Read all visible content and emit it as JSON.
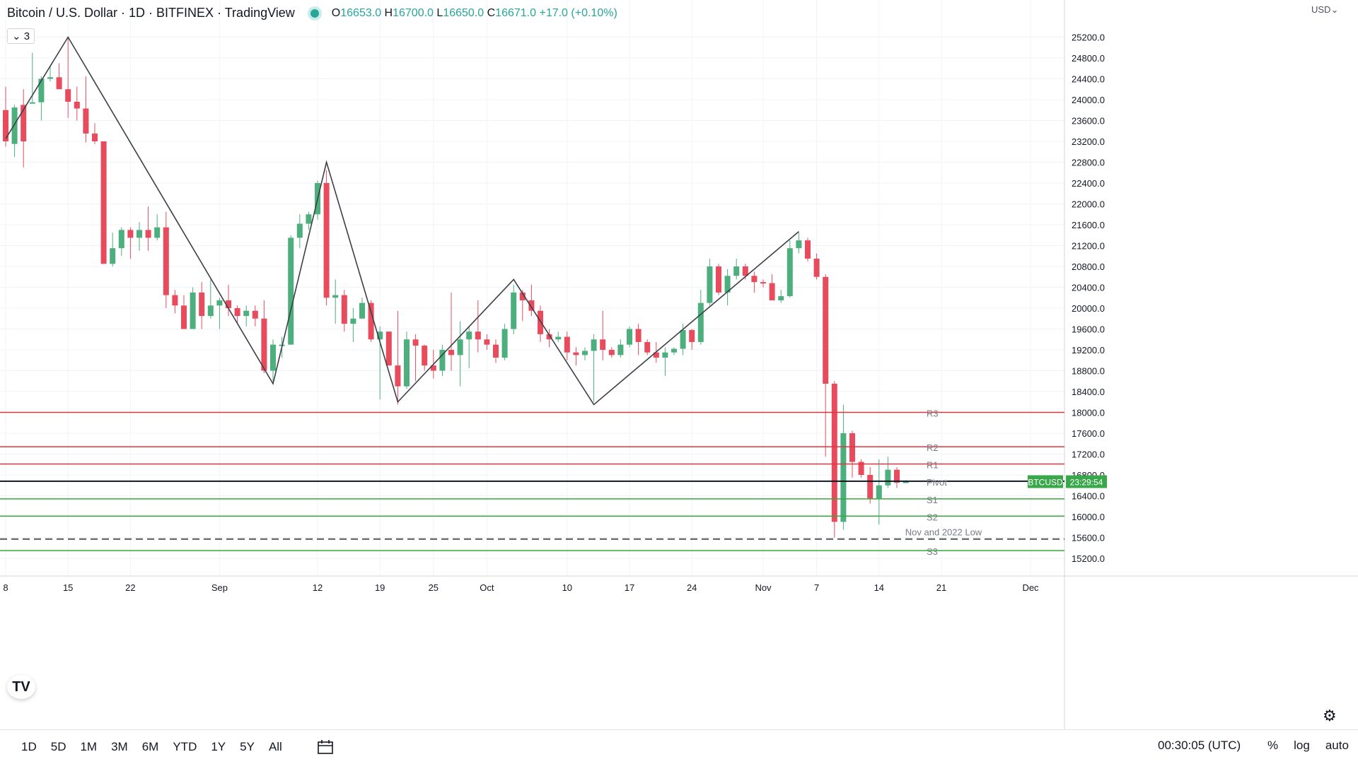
{
  "header": {
    "title": "Bitcoin / U.S. Dollar · 1D · BITFINEX · TradingView",
    "o_label": "O",
    "o_value": "16653.0",
    "h_label": "H",
    "h_value": "16700.0",
    "l_label": "L",
    "l_value": "16650.0",
    "c_label": "C",
    "c_value": "16671.0",
    "change": "+17.0 (+0.10%)",
    "indicator_count": "3",
    "currency": "USD"
  },
  "bottom_bar": {
    "timeframes": [
      "1D",
      "5D",
      "1M",
      "3M",
      "6M",
      "YTD",
      "1Y",
      "5Y",
      "All"
    ],
    "clock": "00:30:05 (UTC)",
    "percent_label": "%",
    "log_label": "log",
    "auto_label": "auto"
  },
  "colors": {
    "up": "#4caf7d",
    "down": "#e84b5c",
    "resistance": "#e0343f",
    "support": "#38a83a",
    "pivot": "#131722",
    "price_tag": "#38a84a"
  },
  "icons": [
    "calendar-icon",
    "gear-icon",
    "tradingview-logo-icon",
    "chevron-down-icon",
    "eye-icon"
  ],
  "chart_data": {
    "type": "candlestick",
    "ylim": [
      14800,
      25600
    ],
    "y_ticks": [
      15200,
      15600,
      16000,
      16400,
      16800,
      17200,
      17600,
      18000,
      18400,
      18800,
      19200,
      19600,
      20000,
      20400,
      20800,
      21200,
      21600,
      22000,
      22400,
      22800,
      23200,
      23600,
      24000,
      24400,
      24800,
      25200
    ],
    "y_tick_labels": [
      "15200.0",
      "15600.0",
      "16000.0",
      "16400.0",
      "16800.0",
      "17200.0",
      "17600.0",
      "18000.0",
      "18400.0",
      "18800.0",
      "19200.0",
      "19600.0",
      "20000.0",
      "20400.0",
      "20800.0",
      "21200.0",
      "21600.0",
      "22000.0",
      "22400.0",
      "22800.0",
      "23200.0",
      "23600.0",
      "24000.0",
      "24400.0",
      "24800.0",
      "25200.0"
    ],
    "x_ticks": [
      {
        "label": "8",
        "date": "2022-08-08"
      },
      {
        "label": "15",
        "date": "2022-08-15"
      },
      {
        "label": "22",
        "date": "2022-08-22"
      },
      {
        "label": "Sep",
        "date": "2022-09-01"
      },
      {
        "label": "12",
        "date": "2022-09-12"
      },
      {
        "label": "19",
        "date": "2022-09-19"
      },
      {
        "label": "25",
        "date": "2022-09-25"
      },
      {
        "label": "Oct",
        "date": "2022-10-01"
      },
      {
        "label": "10",
        "date": "2022-10-10"
      },
      {
        "label": "17",
        "date": "2022-10-17"
      },
      {
        "label": "24",
        "date": "2022-10-24"
      },
      {
        "label": "Nov",
        "date": "2022-11-01"
      },
      {
        "label": "7",
        "date": "2022-11-07"
      },
      {
        "label": "14",
        "date": "2022-11-14"
      },
      {
        "label": "21",
        "date": "2022-11-21"
      },
      {
        "label": "Dec",
        "date": "2022-12-01"
      }
    ],
    "x_range": [
      "2022-08-08",
      "2022-12-03"
    ],
    "candles": [
      [
        "2022-08-08",
        23800,
        24250,
        23100,
        23200
      ],
      [
        "2022-08-09",
        23150,
        23900,
        22900,
        23850
      ],
      [
        "2022-08-10",
        23900,
        24200,
        22700,
        23200
      ],
      [
        "2022-08-11",
        23950,
        24900,
        23950,
        23950
      ],
      [
        "2022-08-12",
        23950,
        24450,
        23600,
        24400
      ],
      [
        "2022-08-13",
        24400,
        24650,
        24350,
        24430
      ],
      [
        "2022-08-14",
        24430,
        24700,
        24300,
        24200
      ],
      [
        "2022-08-15",
        24200,
        25200,
        23650,
        23960
      ],
      [
        "2022-08-16",
        23960,
        24250,
        23600,
        23830
      ],
      [
        "2022-08-17",
        23830,
        24450,
        23180,
        23350
      ],
      [
        "2022-08-18",
        23350,
        23550,
        23150,
        23200
      ],
      [
        "2022-08-19",
        23200,
        23200,
        20850,
        20850
      ],
      [
        "2022-08-20",
        20850,
        21450,
        20800,
        21150
      ],
      [
        "2022-08-21",
        21150,
        21550,
        21000,
        21500
      ],
      [
        "2022-08-22",
        21500,
        21550,
        20950,
        21350
      ],
      [
        "2022-08-23",
        21350,
        21650,
        21100,
        21500
      ],
      [
        "2022-08-24",
        21500,
        21950,
        21100,
        21350
      ],
      [
        "2022-08-25",
        21350,
        21800,
        21300,
        21550
      ],
      [
        "2022-08-26",
        21550,
        21850,
        20000,
        20250
      ],
      [
        "2022-08-27",
        20250,
        20350,
        19900,
        20050
      ],
      [
        "2022-08-28",
        20050,
        20250,
        19600,
        19600
      ],
      [
        "2022-08-29",
        19600,
        20400,
        19600,
        20300
      ],
      [
        "2022-08-30",
        20300,
        20500,
        19600,
        19850
      ],
      [
        "2022-08-31",
        19850,
        20550,
        19800,
        20050
      ],
      [
        "2022-09-01",
        20050,
        20200,
        19600,
        20150
      ],
      [
        "2022-09-02",
        20150,
        20450,
        19850,
        20000
      ],
      [
        "2022-09-03",
        20000,
        20050,
        19700,
        19850
      ],
      [
        "2022-09-04",
        19850,
        20050,
        19650,
        19950
      ],
      [
        "2022-09-05",
        19950,
        20050,
        19650,
        19800
      ],
      [
        "2022-09-06",
        19800,
        20150,
        18750,
        18800
      ],
      [
        "2022-09-07",
        18800,
        19400,
        18600,
        19300
      ],
      [
        "2022-09-08",
        19300,
        19450,
        19050,
        19300
      ],
      [
        "2022-09-09",
        19300,
        21400,
        19300,
        21350
      ],
      [
        "2022-09-10",
        21350,
        21800,
        21150,
        21620
      ],
      [
        "2022-09-11",
        21620,
        21850,
        21500,
        21800
      ],
      [
        "2022-09-12",
        21800,
        22450,
        21700,
        22400
      ],
      [
        "2022-09-13",
        22400,
        22650,
        20050,
        20200
      ],
      [
        "2022-09-14",
        20200,
        20550,
        19700,
        20250
      ],
      [
        "2022-09-15",
        20250,
        20350,
        19550,
        19700
      ],
      [
        "2022-09-16",
        19700,
        20000,
        19350,
        19800
      ],
      [
        "2022-09-17",
        19800,
        20200,
        19800,
        20100
      ],
      [
        "2022-09-18",
        20100,
        20150,
        19350,
        19400
      ],
      [
        "2022-09-19",
        19400,
        19650,
        18250,
        19550
      ],
      [
        "2022-09-20",
        19550,
        19550,
        18900,
        18900
      ],
      [
        "2022-09-21",
        18900,
        19950,
        18150,
        18500
      ],
      [
        "2022-09-22",
        18500,
        19550,
        18450,
        19400
      ],
      [
        "2022-09-23",
        19400,
        19500,
        18600,
        19280
      ],
      [
        "2022-09-24",
        19280,
        19300,
        18800,
        18900
      ],
      [
        "2022-09-25",
        18900,
        19200,
        18650,
        18800
      ],
      [
        "2022-09-26",
        18800,
        19300,
        18700,
        19200
      ],
      [
        "2022-09-27",
        19200,
        20300,
        18800,
        19100
      ],
      [
        "2022-09-28",
        19100,
        19750,
        18500,
        19400
      ],
      [
        "2022-09-29",
        19400,
        19650,
        18850,
        19550
      ],
      [
        "2022-09-30",
        19550,
        20150,
        19150,
        19400
      ],
      [
        "2022-10-01",
        19400,
        19500,
        19200,
        19300
      ],
      [
        "2022-10-02",
        19300,
        19400,
        18950,
        19050
      ],
      [
        "2022-10-03",
        19050,
        19700,
        19000,
        19600
      ],
      [
        "2022-10-04",
        19600,
        20450,
        19500,
        20300
      ],
      [
        "2022-10-05",
        20300,
        20350,
        19750,
        20150
      ],
      [
        "2022-10-06",
        20150,
        20450,
        19850,
        19950
      ],
      [
        "2022-10-07",
        19950,
        20050,
        19350,
        19500
      ],
      [
        "2022-10-08",
        19500,
        19600,
        19250,
        19400
      ],
      [
        "2022-10-09",
        19400,
        19550,
        19350,
        19450
      ],
      [
        "2022-10-10",
        19450,
        19550,
        19000,
        19150
      ],
      [
        "2022-10-11",
        19150,
        19250,
        18900,
        19100
      ],
      [
        "2022-10-12",
        19100,
        19250,
        19000,
        19180
      ],
      [
        "2022-10-13",
        19180,
        19500,
        18200,
        19400
      ],
      [
        "2022-10-14",
        19400,
        19950,
        19000,
        19200
      ],
      [
        "2022-10-15",
        19200,
        19250,
        19050,
        19100
      ],
      [
        "2022-10-16",
        19100,
        19400,
        19050,
        19300
      ],
      [
        "2022-10-17",
        19300,
        19650,
        19250,
        19600
      ],
      [
        "2022-10-18",
        19600,
        19700,
        19100,
        19350
      ],
      [
        "2022-10-19",
        19350,
        19400,
        19100,
        19150
      ],
      [
        "2022-10-20",
        19150,
        19350,
        18950,
        19050
      ],
      [
        "2022-10-21",
        19050,
        19250,
        18700,
        19150
      ],
      [
        "2022-10-22",
        19150,
        19250,
        19100,
        19220
      ],
      [
        "2022-10-23",
        19220,
        19700,
        19100,
        19580
      ],
      [
        "2022-10-24",
        19580,
        19600,
        19200,
        19350
      ],
      [
        "2022-10-25",
        19350,
        20350,
        19300,
        20100
      ],
      [
        "2022-10-26",
        20100,
        20950,
        20050,
        20800
      ],
      [
        "2022-10-27",
        20800,
        20850,
        20250,
        20300
      ],
      [
        "2022-10-28",
        20300,
        20750,
        20050,
        20620
      ],
      [
        "2022-10-29",
        20620,
        20950,
        20550,
        20800
      ],
      [
        "2022-10-30",
        20800,
        20850,
        20550,
        20620
      ],
      [
        "2022-10-31",
        20620,
        20700,
        20300,
        20500
      ],
      [
        "2022-11-01",
        20500,
        20550,
        20400,
        20480
      ],
      [
        "2022-11-02",
        20480,
        20650,
        20150,
        20150
      ],
      [
        "2022-11-03",
        20150,
        20350,
        20100,
        20230
      ],
      [
        "2022-11-04",
        20230,
        21300,
        20200,
        21150
      ],
      [
        "2022-11-05",
        21150,
        21450,
        21050,
        21300
      ],
      [
        "2022-11-06",
        21300,
        21350,
        20900,
        20950
      ],
      [
        "2022-11-07",
        20950,
        21050,
        20550,
        20600
      ],
      [
        "2022-11-08",
        20600,
        20650,
        17150,
        18550
      ],
      [
        "2022-11-09",
        18550,
        18600,
        15600,
        15900
      ],
      [
        "2022-11-10",
        15900,
        18150,
        15750,
        17600
      ],
      [
        "2022-11-11",
        17600,
        17650,
        16750,
        17050
      ],
      [
        "2022-11-12",
        17050,
        17100,
        16750,
        16800
      ],
      [
        "2022-11-13",
        16800,
        16950,
        16250,
        16350
      ],
      [
        "2022-11-14",
        16350,
        17100,
        15850,
        16600
      ],
      [
        "2022-11-15",
        16600,
        17150,
        16550,
        16900
      ],
      [
        "2022-11-16",
        16900,
        16950,
        16550,
        16650
      ],
      [
        "2022-11-17",
        16653,
        16700,
        16650,
        16671
      ]
    ],
    "zigzag": [
      [
        "2022-08-08",
        23250
      ],
      [
        "2022-08-15",
        25200
      ],
      [
        "2022-09-07",
        18550
      ],
      [
        "2022-09-13",
        22800
      ],
      [
        "2022-09-21",
        18200
      ],
      [
        "2022-10-04",
        20550
      ],
      [
        "2022-10-13",
        18150
      ],
      [
        "2022-11-05",
        21470
      ]
    ],
    "levels": [
      {
        "name": "R3",
        "value": 18000,
        "kind": "resistance",
        "style": "solid"
      },
      {
        "name": "R2",
        "value": 17340,
        "kind": "resistance",
        "style": "solid"
      },
      {
        "name": "R1",
        "value": 17010,
        "kind": "resistance",
        "style": "solid"
      },
      {
        "name": "Pivot",
        "value": 16680,
        "kind": "pivot",
        "style": "solid"
      },
      {
        "name": "S1",
        "value": 16340,
        "kind": "support",
        "style": "solid"
      },
      {
        "name": "S2",
        "value": 16010,
        "kind": "support",
        "style": "solid"
      },
      {
        "name": "Nov and 2022 Low",
        "value": 15570,
        "kind": "low",
        "style": "dashed"
      },
      {
        "name": "S3",
        "value": 15350,
        "kind": "support",
        "style": "solid"
      }
    ],
    "price_tag": {
      "symbol": "BTCUSD",
      "countdown": "23:29:54",
      "value": 16671
    }
  }
}
